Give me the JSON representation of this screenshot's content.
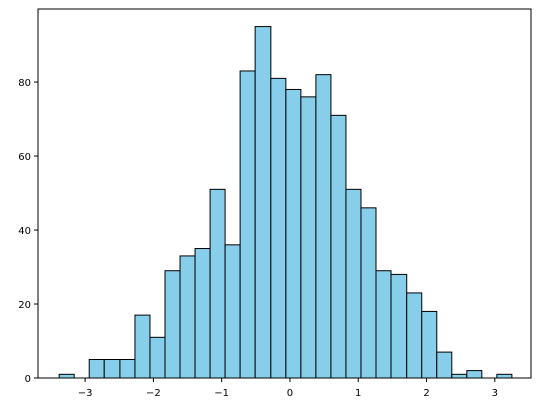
{
  "chart_data": {
    "type": "histogram",
    "bins": [
      -3.38,
      -3.16,
      -2.94,
      -2.72,
      -2.49,
      -2.27,
      -2.05,
      -1.83,
      -1.61,
      -1.39,
      -1.17,
      -0.95,
      -0.73,
      -0.51,
      -0.28,
      -0.06,
      0.16,
      0.38,
      0.6,
      0.82,
      1.04,
      1.26,
      1.48,
      1.71,
      1.93,
      2.15,
      2.37,
      2.59,
      2.81,
      3.03,
      3.25
    ],
    "values": [
      1,
      0,
      5,
      5,
      5,
      17,
      11,
      29,
      33,
      35,
      51,
      36,
      83,
      95,
      81,
      78,
      76,
      82,
      71,
      51,
      46,
      29,
      28,
      23,
      18,
      7,
      1,
      2,
      0,
      1
    ],
    "color": "#87ceeb",
    "edgecolor": "#000000",
    "xlim": [
      -3.69,
      3.53
    ],
    "xticks": [
      {
        "value": -3,
        "label": "−3"
      },
      {
        "value": -2,
        "label": "−2"
      },
      {
        "value": -1,
        "label": "−1"
      },
      0,
      1,
      2,
      3
    ],
    "ylim": [
      0,
      99.75
    ],
    "yticks": [
      0,
      20,
      40,
      60,
      80
    ]
  }
}
